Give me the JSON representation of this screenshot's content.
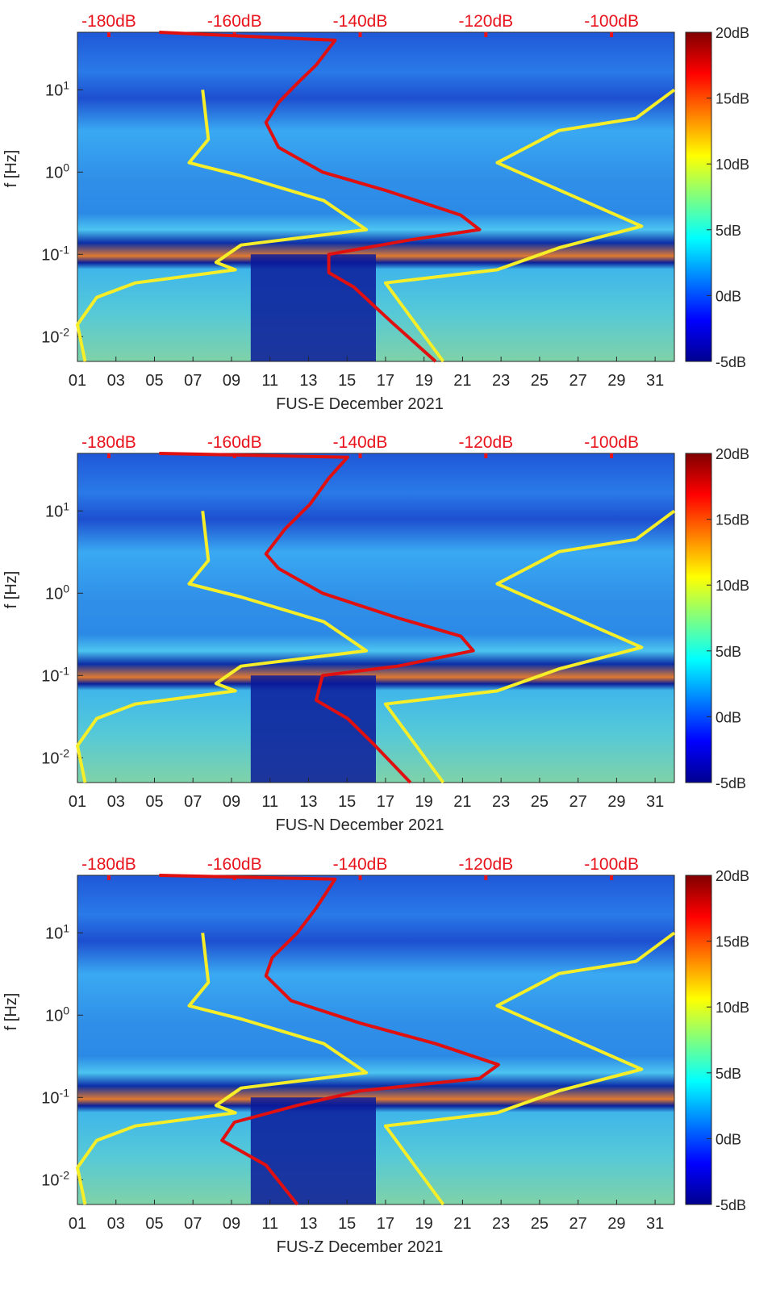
{
  "colors": {
    "red_axis": "#e8121b",
    "red_line": "#e01010",
    "yellow_line": "#f6ee28",
    "axis": "#262626"
  },
  "chart_data": [
    {
      "type": "heatmap",
      "title": "FUS-E December 2021",
      "xlabel": "FUS-E December 2021",
      "ylabel": "f [Hz]",
      "x_range_days": [
        1,
        32
      ],
      "x_tick_labels": [
        "01",
        "03",
        "05",
        "07",
        "09",
        "11",
        "13",
        "15",
        "17",
        "19",
        "21",
        "23",
        "25",
        "27",
        "29",
        "31"
      ],
      "y_scale": "log",
      "y_range_hz": [
        0.005,
        50
      ],
      "y_tick_labels": [
        {
          "base": "10",
          "exp": "1"
        },
        {
          "base": "10",
          "exp": "0"
        },
        {
          "base": "10",
          "exp": "-1"
        },
        {
          "base": "10",
          "exp": "-2"
        }
      ],
      "top_axis_labels": [
        "-180dB",
        "-160dB",
        "-140dB",
        "-120dB",
        "-100dB"
      ],
      "top_axis_range_db": [
        -185,
        -90
      ],
      "colorbar_labels": [
        "20dB",
        "15dB",
        "10dB",
        "5dB",
        "0dB",
        "-5dB"
      ],
      "colorbar_range_db": [
        -5,
        20
      ],
      "red_curve": [
        {
          "db": -172,
          "f": 50
        },
        {
          "db": -144,
          "f": 40
        },
        {
          "db": -147,
          "f": 20
        },
        {
          "db": -150,
          "f": 12
        },
        {
          "db": -153,
          "f": 7
        },
        {
          "db": -155,
          "f": 4
        },
        {
          "db": -153,
          "f": 2
        },
        {
          "db": -146,
          "f": 1
        },
        {
          "db": -136,
          "f": 0.6
        },
        {
          "db": -124,
          "f": 0.3
        },
        {
          "db": -121,
          "f": 0.2
        },
        {
          "db": -132,
          "f": 0.15
        },
        {
          "db": -145,
          "f": 0.1
        },
        {
          "db": -145,
          "f": 0.06
        },
        {
          "db": -141,
          "f": 0.04
        },
        {
          "db": -135,
          "f": 0.015
        },
        {
          "db": -128,
          "f": 0.005
        }
      ],
      "yellow_curves": [
        [
          {
            "day": 7.5,
            "f": 10
          },
          {
            "day": 7.8,
            "f": 2.5
          },
          {
            "day": 6.8,
            "f": 1.3
          },
          {
            "day": 9.5,
            "f": 0.9
          },
          {
            "day": 13.8,
            "f": 0.45
          },
          {
            "day": 16,
            "f": 0.2
          },
          {
            "day": 9.5,
            "f": 0.13
          },
          {
            "day": 8.2,
            "f": 0.08
          },
          {
            "day": 9.2,
            "f": 0.065
          },
          {
            "day": 4,
            "f": 0.045
          },
          {
            "day": 2,
            "f": 0.03
          },
          {
            "day": 1,
            "f": 0.014
          },
          {
            "day": 1.4,
            "f": 0.005
          }
        ],
        [
          {
            "day": 32,
            "f": 10
          },
          {
            "day": 30,
            "f": 4.5
          },
          {
            "day": 26,
            "f": 3.2
          },
          {
            "day": 22.8,
            "f": 1.3
          },
          {
            "day": 30.3,
            "f": 0.22
          },
          {
            "day": 26,
            "f": 0.12
          },
          {
            "day": 22.8,
            "f": 0.065
          },
          {
            "day": 17,
            "f": 0.045
          },
          {
            "day": 20,
            "f": 0.005
          }
        ]
      ]
    },
    {
      "type": "heatmap",
      "title": "FUS-N December 2021",
      "xlabel": "FUS-N December 2021",
      "ylabel": "f [Hz]",
      "x_range_days": [
        1,
        32
      ],
      "x_tick_labels": [
        "01",
        "03",
        "05",
        "07",
        "09",
        "11",
        "13",
        "15",
        "17",
        "19",
        "21",
        "23",
        "25",
        "27",
        "29",
        "31"
      ],
      "y_scale": "log",
      "y_range_hz": [
        0.005,
        50
      ],
      "y_tick_labels": [
        {
          "base": "10",
          "exp": "1"
        },
        {
          "base": "10",
          "exp": "0"
        },
        {
          "base": "10",
          "exp": "-1"
        },
        {
          "base": "10",
          "exp": "-2"
        }
      ],
      "top_axis_labels": [
        "-180dB",
        "-160dB",
        "-140dB",
        "-120dB",
        "-100dB"
      ],
      "top_axis_range_db": [
        -185,
        -90
      ],
      "colorbar_labels": [
        "20dB",
        "15dB",
        "10dB",
        "5dB",
        "0dB",
        "-5dB"
      ],
      "colorbar_range_db": [
        -5,
        20
      ],
      "red_curve": [
        {
          "db": -172,
          "f": 50
        },
        {
          "db": -142,
          "f": 45
        },
        {
          "db": -145,
          "f": 25
        },
        {
          "db": -148,
          "f": 12
        },
        {
          "db": -152,
          "f": 6
        },
        {
          "db": -155,
          "f": 3
        },
        {
          "db": -153,
          "f": 2
        },
        {
          "db": -146,
          "f": 1
        },
        {
          "db": -134,
          "f": 0.5
        },
        {
          "db": -124,
          "f": 0.3
        },
        {
          "db": -122,
          "f": 0.2
        },
        {
          "db": -134,
          "f": 0.13
        },
        {
          "db": -146,
          "f": 0.1
        },
        {
          "db": -147,
          "f": 0.05
        },
        {
          "db": -142,
          "f": 0.03
        },
        {
          "db": -138,
          "f": 0.015
        },
        {
          "db": -132,
          "f": 0.005
        }
      ],
      "yellow_curves": [
        [
          {
            "day": 7.5,
            "f": 10
          },
          {
            "day": 7.8,
            "f": 2.5
          },
          {
            "day": 6.8,
            "f": 1.3
          },
          {
            "day": 9.5,
            "f": 0.9
          },
          {
            "day": 13.8,
            "f": 0.45
          },
          {
            "day": 16,
            "f": 0.2
          },
          {
            "day": 9.5,
            "f": 0.13
          },
          {
            "day": 8.2,
            "f": 0.08
          },
          {
            "day": 9.2,
            "f": 0.065
          },
          {
            "day": 4,
            "f": 0.045
          },
          {
            "day": 2,
            "f": 0.03
          },
          {
            "day": 1,
            "f": 0.014
          },
          {
            "day": 1.4,
            "f": 0.005
          }
        ],
        [
          {
            "day": 32,
            "f": 10
          },
          {
            "day": 30,
            "f": 4.5
          },
          {
            "day": 26,
            "f": 3.2
          },
          {
            "day": 22.8,
            "f": 1.3
          },
          {
            "day": 30.3,
            "f": 0.22
          },
          {
            "day": 26,
            "f": 0.12
          },
          {
            "day": 22.8,
            "f": 0.065
          },
          {
            "day": 17,
            "f": 0.045
          },
          {
            "day": 20,
            "f": 0.005
          }
        ]
      ]
    },
    {
      "type": "heatmap",
      "title": "FUS-Z December 2021",
      "xlabel": "FUS-Z December 2021",
      "ylabel": "f [Hz]",
      "x_range_days": [
        1,
        32
      ],
      "x_tick_labels": [
        "01",
        "03",
        "05",
        "07",
        "09",
        "11",
        "13",
        "15",
        "17",
        "19",
        "21",
        "23",
        "25",
        "27",
        "29",
        "31"
      ],
      "y_scale": "log",
      "y_range_hz": [
        0.005,
        50
      ],
      "y_tick_labels": [
        {
          "base": "10",
          "exp": "1"
        },
        {
          "base": "10",
          "exp": "0"
        },
        {
          "base": "10",
          "exp": "-1"
        },
        {
          "base": "10",
          "exp": "-2"
        }
      ],
      "top_axis_labels": [
        "-180dB",
        "-160dB",
        "-140dB",
        "-120dB",
        "-100dB"
      ],
      "top_axis_range_db": [
        -185,
        -90
      ],
      "colorbar_labels": [
        "20dB",
        "15dB",
        "10dB",
        "5dB",
        "0dB",
        "-5dB"
      ],
      "colorbar_range_db": [
        -5,
        20
      ],
      "red_curve": [
        {
          "db": -172,
          "f": 50
        },
        {
          "db": -144,
          "f": 45
        },
        {
          "db": -147,
          "f": 20
        },
        {
          "db": -150,
          "f": 10
        },
        {
          "db": -154,
          "f": 5
        },
        {
          "db": -155,
          "f": 3
        },
        {
          "db": -151,
          "f": 1.5
        },
        {
          "db": -140,
          "f": 0.8
        },
        {
          "db": -128,
          "f": 0.45
        },
        {
          "db": -118,
          "f": 0.25
        },
        {
          "db": -121,
          "f": 0.17
        },
        {
          "db": -140,
          "f": 0.12
        },
        {
          "db": -150,
          "f": 0.08
        },
        {
          "db": -160,
          "f": 0.05
        },
        {
          "db": -162,
          "f": 0.03
        },
        {
          "db": -155,
          "f": 0.015
        },
        {
          "db": -150,
          "f": 0.005
        }
      ],
      "yellow_curves": [
        [
          {
            "day": 7.5,
            "f": 10
          },
          {
            "day": 7.8,
            "f": 2.5
          },
          {
            "day": 6.8,
            "f": 1.3
          },
          {
            "day": 9.5,
            "f": 0.9
          },
          {
            "day": 13.8,
            "f": 0.45
          },
          {
            "day": 16,
            "f": 0.2
          },
          {
            "day": 9.5,
            "f": 0.13
          },
          {
            "day": 8.2,
            "f": 0.08
          },
          {
            "day": 9.2,
            "f": 0.065
          },
          {
            "day": 4,
            "f": 0.045
          },
          {
            "day": 2,
            "f": 0.03
          },
          {
            "day": 1,
            "f": 0.014
          },
          {
            "day": 1.4,
            "f": 0.005
          }
        ],
        [
          {
            "day": 32,
            "f": 10
          },
          {
            "day": 30,
            "f": 4.5
          },
          {
            "day": 26,
            "f": 3.2
          },
          {
            "day": 22.8,
            "f": 1.3
          },
          {
            "day": 30.3,
            "f": 0.22
          },
          {
            "day": 26,
            "f": 0.12
          },
          {
            "day": 22.8,
            "f": 0.065
          },
          {
            "day": 17,
            "f": 0.045
          },
          {
            "day": 20,
            "f": 0.005
          }
        ]
      ]
    }
  ]
}
